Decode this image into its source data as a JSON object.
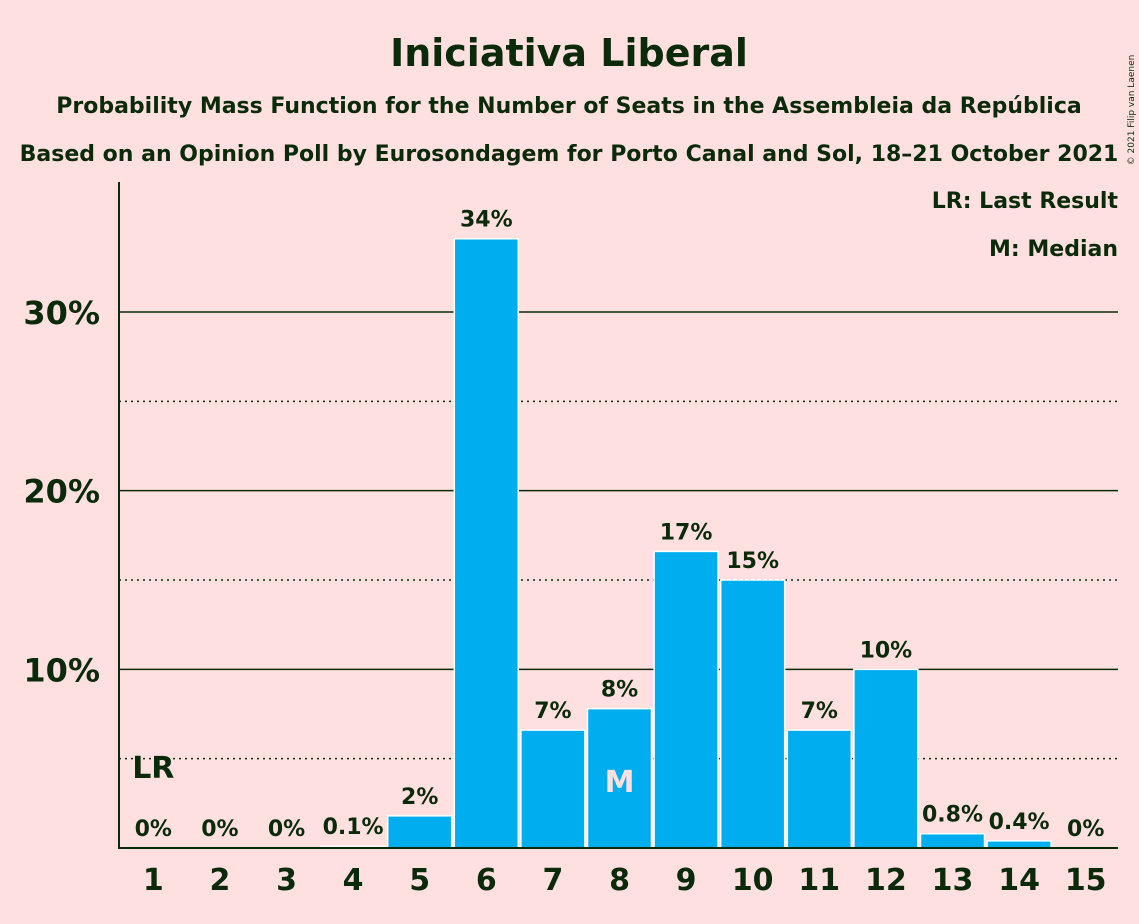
{
  "chart_data": {
    "type": "bar",
    "title": "Iniciativa Liberal",
    "subtitle1": "Probability Mass Function for the Number of Seats in the Assembleia da República",
    "subtitle2": "Based on an Opinion Poll by Eurosondagem for Porto Canal and Sol, 18–21 October 2021",
    "copyright": "© 2021 Filip van Laenen",
    "legend": [
      "LR: Last Result",
      "M: Median"
    ],
    "categories": [
      "1",
      "2",
      "3",
      "4",
      "5",
      "6",
      "7",
      "8",
      "9",
      "10",
      "11",
      "12",
      "13",
      "14",
      "15"
    ],
    "values": [
      0,
      0,
      0,
      0.1,
      1.8,
      34.1,
      6.6,
      7.8,
      16.6,
      15.0,
      6.6,
      10.0,
      0.8,
      0.4,
      0
    ],
    "data_labels": [
      "0%",
      "0%",
      "0%",
      "0.1%",
      "2%",
      "34%",
      "7%",
      "8%",
      "17%",
      "15%",
      "7%",
      "10%",
      "0.8%",
      "0.4%",
      "0%"
    ],
    "ylim": [
      0,
      37
    ],
    "y_major_ticks": [
      10,
      20,
      30
    ],
    "y_major_labels": [
      "10%",
      "20%",
      "30%"
    ],
    "y_minor_ticks": [
      5,
      15,
      25
    ],
    "last_result_seat": "1",
    "last_result_label": "LR",
    "median_seat": "8",
    "median_label": "M",
    "legend_position": "top-right",
    "colors": {
      "bar": "#00AEEF",
      "background": "#FFE0E0",
      "text": "#0a2a0a"
    }
  }
}
